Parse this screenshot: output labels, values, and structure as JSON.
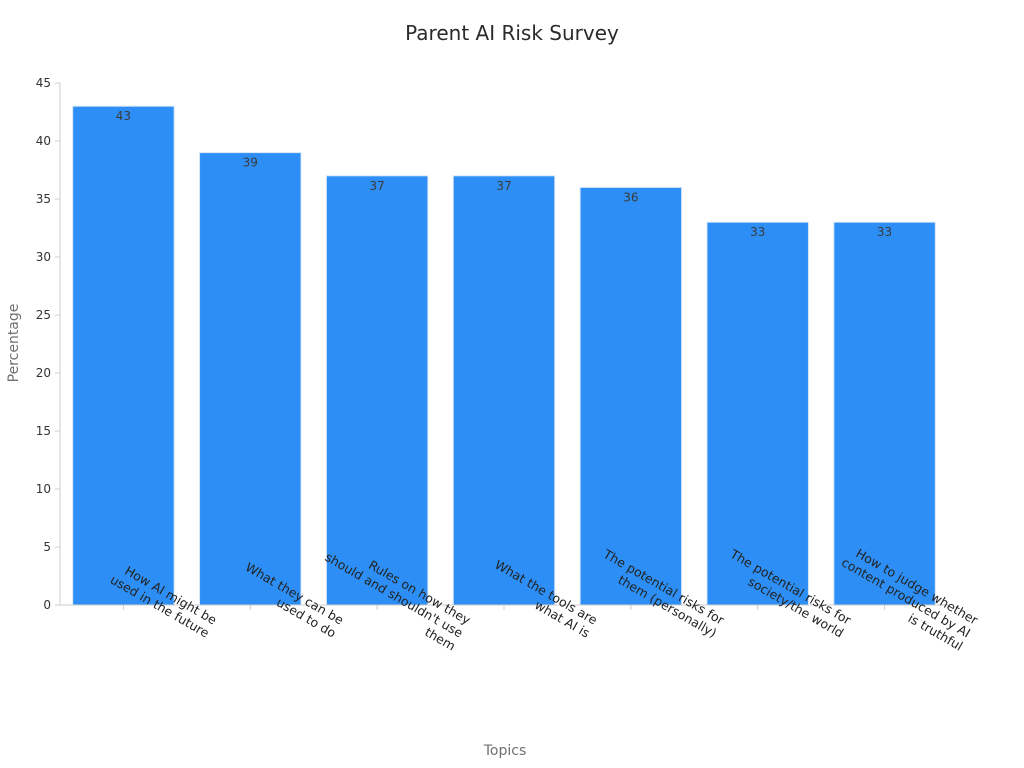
{
  "chart_data": {
    "type": "bar",
    "title": "Parent AI Risk Survey",
    "xlabel": "Topics",
    "ylabel": "Percentage",
    "ylim": [
      0,
      45
    ],
    "yticks": [
      0,
      5,
      10,
      15,
      20,
      25,
      30,
      35,
      40,
      45
    ],
    "categories": [
      [
        "How AI might be",
        "used in the future"
      ],
      [
        "What they can be",
        "used to do"
      ],
      [
        "Rules on how they",
        "should and shouldn't use",
        "them"
      ],
      [
        "What the tools are",
        "what AI is"
      ],
      [
        "The potential risks for",
        "them (personally)"
      ],
      [
        "The potential risks for",
        "society/the world"
      ],
      [
        "How to judge whether",
        "content produced by AI",
        "is truthful"
      ]
    ],
    "values": [
      43,
      39,
      37,
      37,
      36,
      33,
      33
    ],
    "grid": false,
    "legend": "none",
    "colors": {
      "bar": "#2d8ff5",
      "bar_edge": "#d7e6f7",
      "axis": "#cccccc"
    }
  }
}
